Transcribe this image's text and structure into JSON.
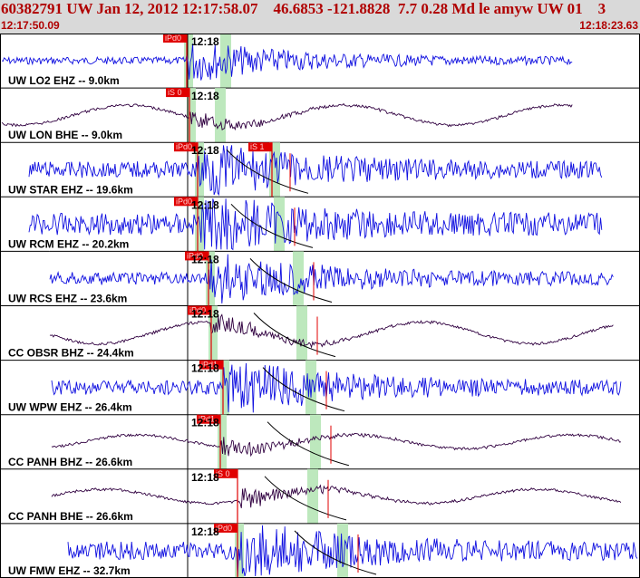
{
  "header": {
    "event_line": "60382791 UW Jan 12, 2012 12:17:58.07    46.6853 -121.8828  7.7 0.28 Md le amyw UW 01    3",
    "time_start": "12:17:50.09",
    "time_end": "12:18:23.63"
  },
  "colors": {
    "header_bg": "#d9d9d9",
    "header_text": "#b00000",
    "trace_ehz": "#1010e0",
    "trace_broadband": "#300040",
    "pick_box": "#e00000",
    "window_band": "#bde8bd",
    "curve": "#000000"
  },
  "traces": [
    {
      "label": "UW LO2 EHZ -- 9.0km",
      "tick": "12:18",
      "pick": "iPd0",
      "pick2": "",
      "kind": "ehz"
    },
    {
      "label": "UW LON BHE -- 9.0km",
      "tick": "12:18",
      "pick": "iS 0",
      "pick2": "",
      "kind": "bb"
    },
    {
      "label": "UW STAR EHZ -- 19.6km",
      "tick": "12:18",
      "pick": "iPd0",
      "pick2": "iS 1",
      "kind": "ehz"
    },
    {
      "label": "UW RCM EHZ -- 20.2km",
      "tick": "12:18",
      "pick": "iPd0",
      "pick2": "",
      "kind": "ehz"
    },
    {
      "label": "UW RCS EHZ -- 23.6km",
      "tick": "12:18",
      "pick": "iPd0",
      "pick2": "",
      "kind": "ehz"
    },
    {
      "label": "CC OBSR BHZ -- 24.4km",
      "tick": "12:18",
      "pick": "iPd0",
      "pick2": "",
      "kind": "bb"
    },
    {
      "label": "UW WPW EHZ -- 26.4km",
      "tick": "12:18",
      "pick": "iPd1",
      "pick2": "",
      "kind": "ehz"
    },
    {
      "label": "CC PANH BHZ -- 26.6km",
      "tick": "12:18",
      "pick": "iPd1",
      "pick2": "",
      "kind": "bb"
    },
    {
      "label": "CC PANH BHE -- 26.6km",
      "tick": "12:18",
      "pick": "iS 0",
      "pick2": "",
      "kind": "bb"
    },
    {
      "label": "UW FMW EHZ -- 32.7km",
      "tick": "12:18",
      "pick": "iPd0",
      "pick2": "",
      "kind": "ehz"
    }
  ]
}
